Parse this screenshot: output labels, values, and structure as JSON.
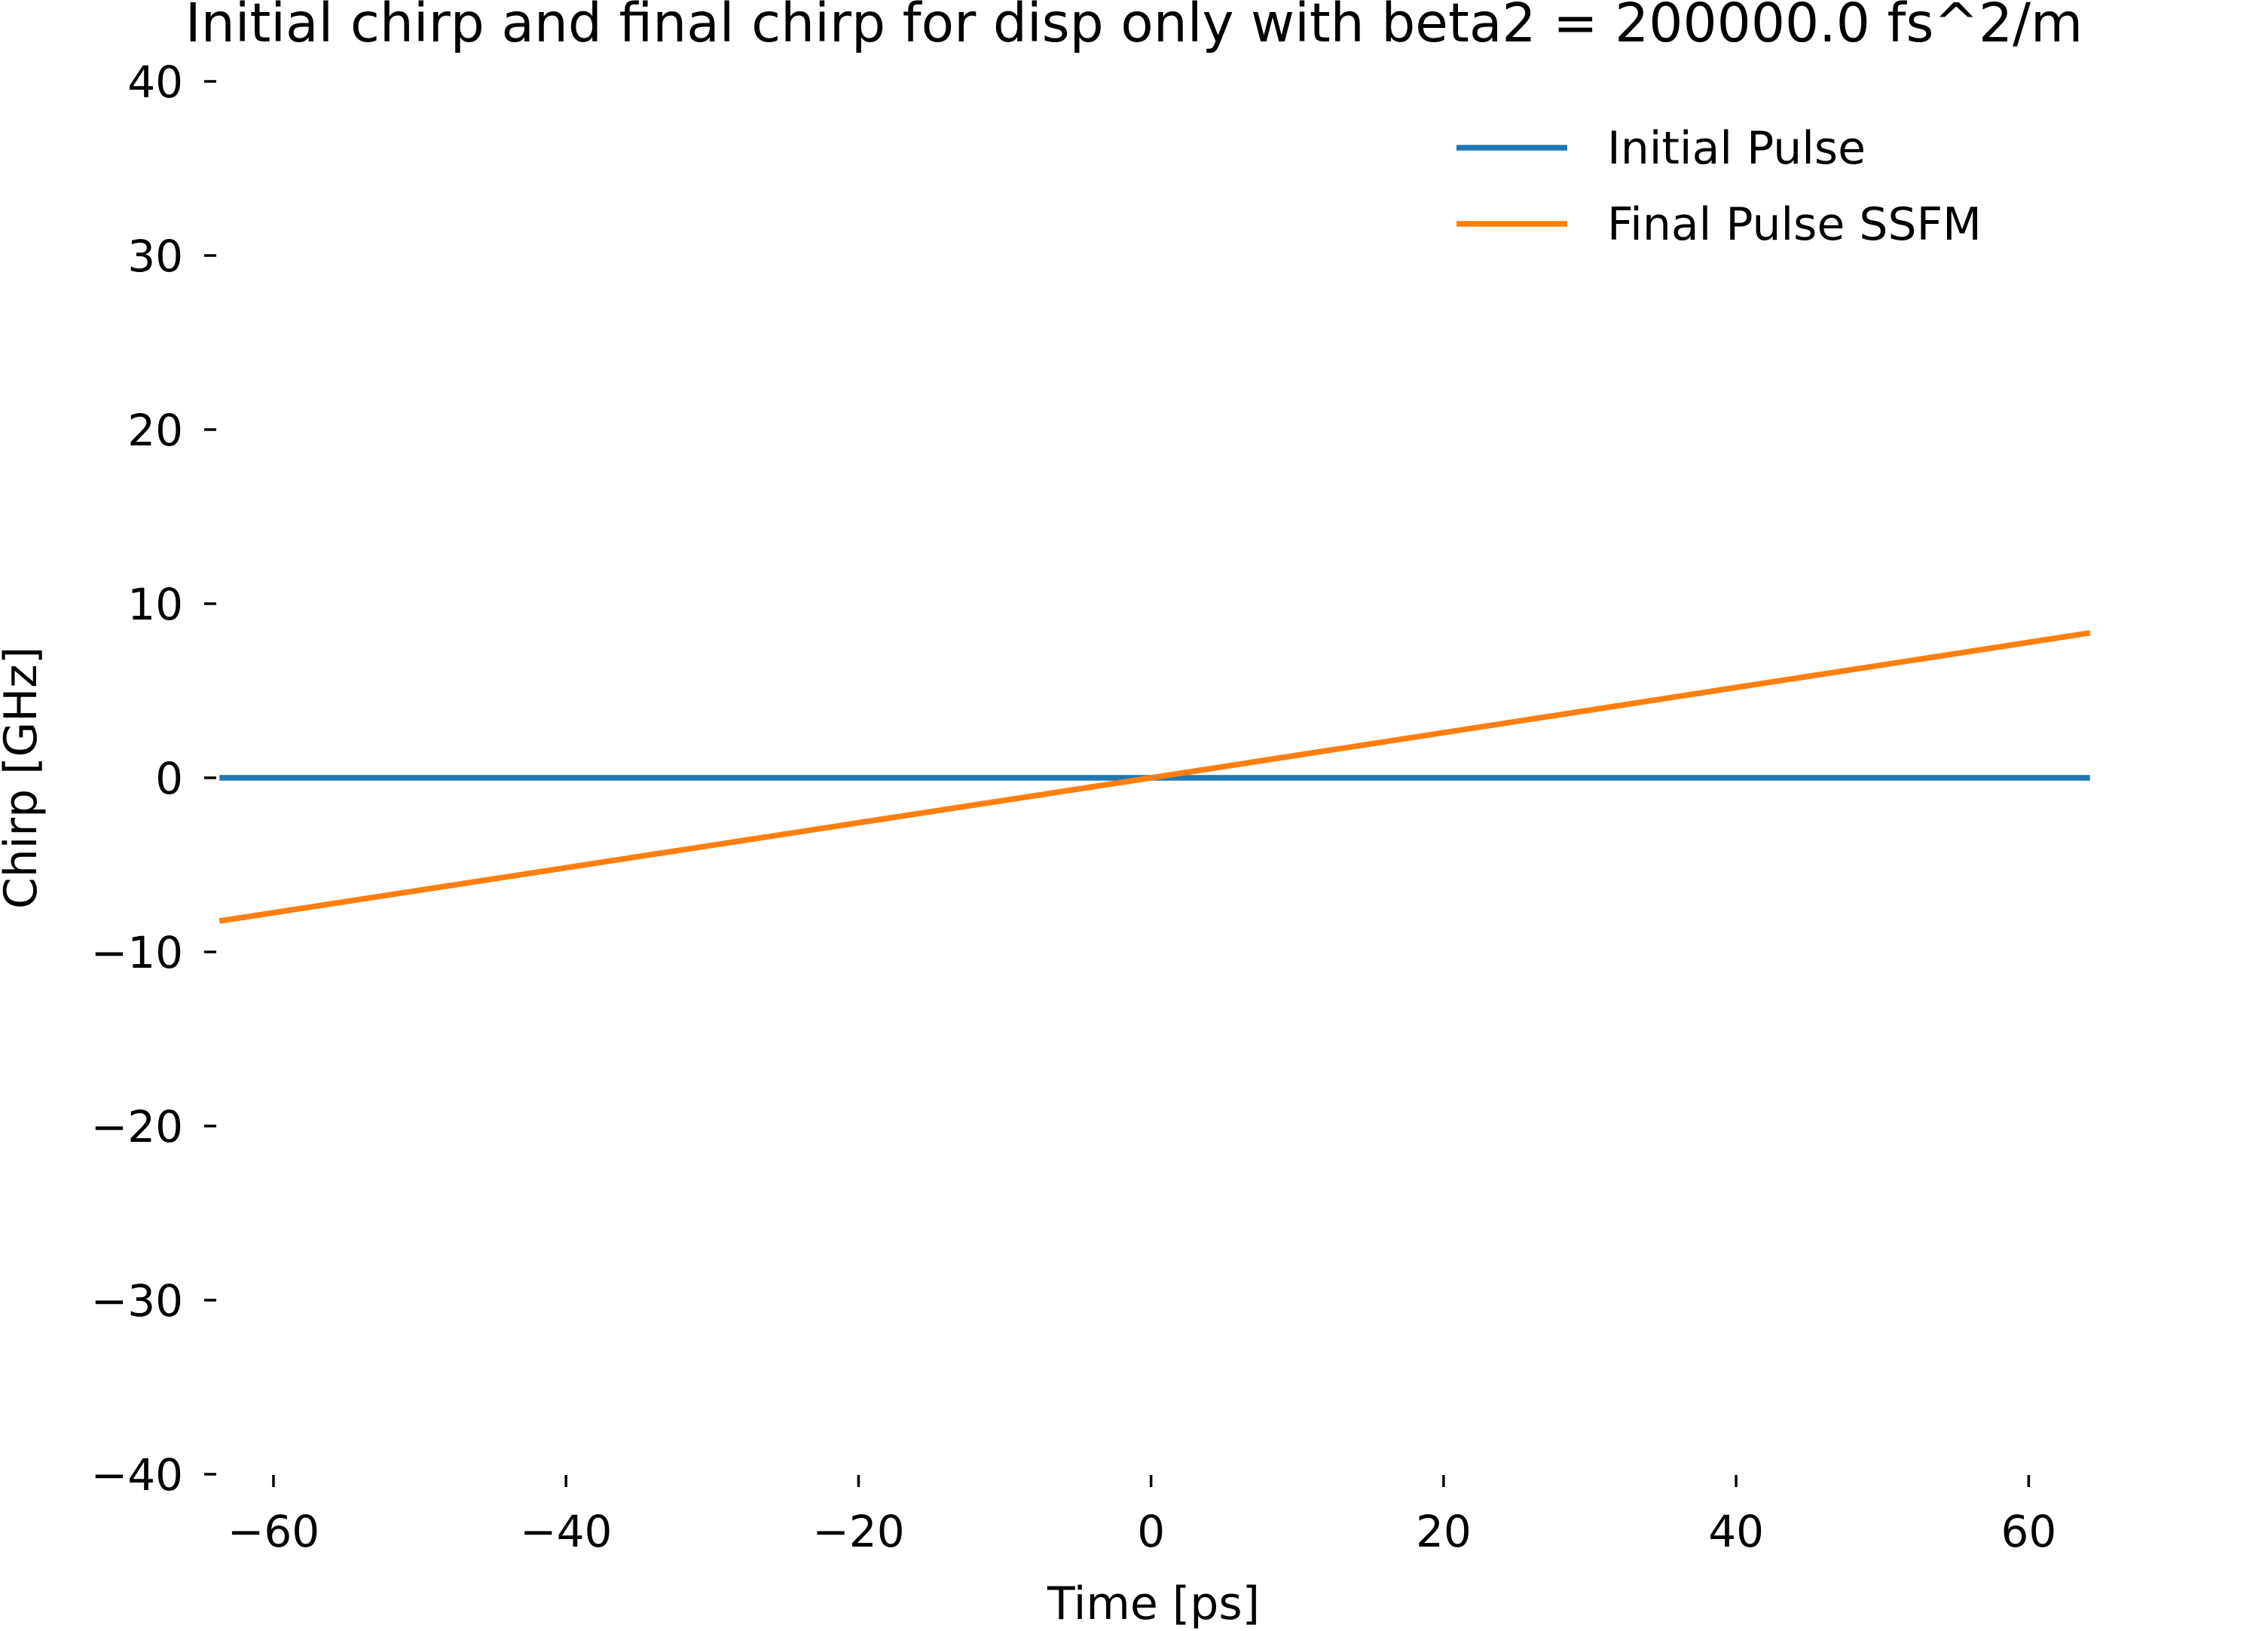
{
  "chart_data": {
    "type": "line",
    "title": "Initial chirp and final chirp for disp only with beta2 = 200000.0 fs^2/m",
    "xlabel": "Time [ps]",
    "ylabel": "Chirp [GHz]",
    "xlim": [
      -63.5,
      64.0
    ],
    "ylim": [
      -40,
      40
    ],
    "xticks": [
      -60,
      -40,
      -20,
      0,
      20,
      40,
      60
    ],
    "xtick_labels": [
      "−60",
      "−40",
      "−20",
      "0",
      "20",
      "40",
      "60"
    ],
    "yticks": [
      40,
      30,
      20,
      10,
      0,
      -10,
      -20,
      -30,
      -40
    ],
    "ytick_labels": [
      "40",
      "30",
      "20",
      "10",
      "0",
      "−10",
      "−20",
      "−30",
      "−40"
    ],
    "grid": false,
    "legend_position": "top-right",
    "series": [
      {
        "name": "Initial Pulse",
        "color": "#1f77b4",
        "x": [
          -63.5,
          0,
          64.0
        ],
        "y": [
          0,
          0,
          0
        ]
      },
      {
        "name": "Final Pulse SSFM",
        "color": "#ff7f0e",
        "x": [
          -63.5,
          0,
          64.0
        ],
        "y": [
          -8.2,
          0,
          8.3
        ]
      }
    ]
  }
}
